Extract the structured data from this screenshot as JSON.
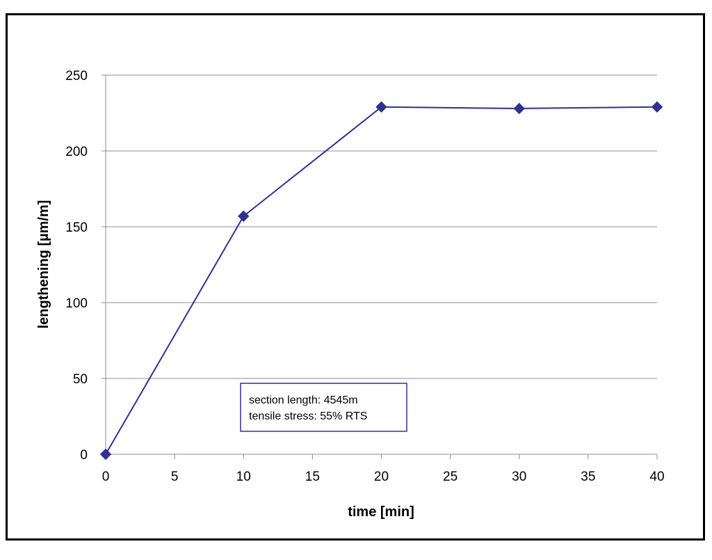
{
  "chart_data": {
    "type": "line",
    "title": "",
    "xlabel": "time [min]",
    "ylabel": "lengthening [µm/m]",
    "xlim": [
      0,
      40
    ],
    "ylim": [
      0,
      250
    ],
    "x_ticks": [
      0,
      5,
      10,
      15,
      20,
      25,
      30,
      35,
      40
    ],
    "y_ticks": [
      0,
      50,
      100,
      150,
      200,
      250
    ],
    "grid": "horizontal",
    "legend": "none",
    "series": [
      {
        "x": [
          0,
          10,
          20,
          30,
          40
        ],
        "y": [
          0,
          157,
          229,
          228,
          229
        ],
        "color": "#2e3192",
        "marker": "diamond"
      }
    ],
    "annotation": {
      "lines": [
        "section length: 4545m",
        "tensile stress: 55% RTS"
      ],
      "border_color": "#2e3192"
    }
  }
}
